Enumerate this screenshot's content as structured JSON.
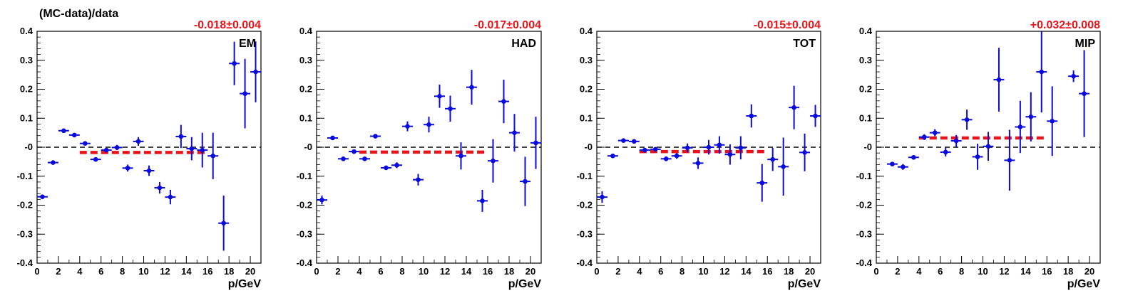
{
  "ylabel": "(MC-data)/data",
  "colors": {
    "points": "#0a0adc",
    "fit": "#e8141c",
    "zero_line": "#000000",
    "frame": "#000000"
  },
  "chart_data": [
    {
      "type": "scatter",
      "label": "EM",
      "fit_text": "-0.018±0.004",
      "fit": {
        "value": -0.018,
        "x_range": [
          4,
          16
        ]
      },
      "xlabel": "p/GeV",
      "xlim": [
        0,
        21
      ],
      "ylim": [
        -0.4,
        0.4
      ],
      "xticks": [
        0,
        2,
        4,
        6,
        8,
        10,
        12,
        14,
        16,
        18,
        20
      ],
      "yticks": [
        0.4,
        0.3,
        0.2,
        0.1,
        0,
        -0.1,
        -0.2,
        -0.3,
        -0.4
      ],
      "ytick_labels": [
        "0.4",
        "0.3",
        "0.2",
        "0.1",
        "-0",
        "-0.1",
        "-0.2",
        "-0.3",
        "-0.4"
      ],
      "points": [
        {
          "x": 0.5,
          "y": -0.171,
          "err": 0.006
        },
        {
          "x": 1.5,
          "y": -0.053,
          "err": 0.005
        },
        {
          "x": 2.5,
          "y": 0.057,
          "err": 0.005
        },
        {
          "x": 3.5,
          "y": 0.042,
          "err": 0.005
        },
        {
          "x": 4.5,
          "y": 0.013,
          "err": 0.006
        },
        {
          "x": 5.5,
          "y": -0.042,
          "err": 0.006
        },
        {
          "x": 6.5,
          "y": -0.01,
          "err": 0.007
        },
        {
          "x": 7.5,
          "y": -0.001,
          "err": 0.009
        },
        {
          "x": 8.5,
          "y": -0.072,
          "err": 0.012
        },
        {
          "x": 9.5,
          "y": 0.02,
          "err": 0.015
        },
        {
          "x": 10.5,
          "y": -0.081,
          "err": 0.018
        },
        {
          "x": 11.5,
          "y": -0.14,
          "err": 0.02
        },
        {
          "x": 12.5,
          "y": -0.172,
          "err": 0.025
        },
        {
          "x": 13.5,
          "y": 0.037,
          "err": 0.04
        },
        {
          "x": 14.5,
          "y": -0.005,
          "err": 0.04
        },
        {
          "x": 15.5,
          "y": -0.01,
          "err": 0.06
        },
        {
          "x": 16.5,
          "y": -0.03,
          "err": 0.08
        },
        {
          "x": 17.5,
          "y": -0.262,
          "err": 0.095
        },
        {
          "x": 18.5,
          "y": 0.289,
          "err": 0.075
        },
        {
          "x": 19.5,
          "y": 0.185,
          "err": 0.12
        },
        {
          "x": 20.5,
          "y": 0.26,
          "err": 0.105
        }
      ]
    },
    {
      "type": "scatter",
      "label": "HAD",
      "fit_text": "-0.017±0.004",
      "fit": {
        "value": -0.017,
        "x_range": [
          4,
          16
        ]
      },
      "xlabel": "p/GeV",
      "xlim": [
        0,
        21
      ],
      "ylim": [
        -0.4,
        0.4
      ],
      "xticks": [
        0,
        2,
        4,
        6,
        8,
        10,
        12,
        14,
        16,
        18,
        20
      ],
      "yticks": [
        0.4,
        0.3,
        0.2,
        0.1,
        0,
        -0.1,
        -0.2,
        -0.3,
        -0.4
      ],
      "ytick_labels": [
        "0.4",
        "0.3",
        "0.2",
        "0.1",
        "-0",
        "-0.1",
        "-0.2",
        "-0.3",
        "-0.4"
      ],
      "points": [
        {
          "x": 0.5,
          "y": -0.182,
          "err": 0.015
        },
        {
          "x": 1.5,
          "y": 0.032,
          "err": 0.005
        },
        {
          "x": 2.5,
          "y": -0.04,
          "err": 0.005
        },
        {
          "x": 3.5,
          "y": -0.015,
          "err": 0.005
        },
        {
          "x": 4.5,
          "y": -0.04,
          "err": 0.005
        },
        {
          "x": 5.5,
          "y": 0.038,
          "err": 0.006
        },
        {
          "x": 6.5,
          "y": -0.071,
          "err": 0.007
        },
        {
          "x": 7.5,
          "y": -0.062,
          "err": 0.01
        },
        {
          "x": 8.5,
          "y": 0.072,
          "err": 0.017
        },
        {
          "x": 9.5,
          "y": -0.112,
          "err": 0.02
        },
        {
          "x": 10.5,
          "y": 0.078,
          "err": 0.027
        },
        {
          "x": 11.5,
          "y": 0.176,
          "err": 0.04
        },
        {
          "x": 12.5,
          "y": 0.133,
          "err": 0.045
        },
        {
          "x": 13.5,
          "y": -0.03,
          "err": 0.047
        },
        {
          "x": 14.5,
          "y": 0.207,
          "err": 0.06
        },
        {
          "x": 15.5,
          "y": -0.185,
          "err": 0.038
        },
        {
          "x": 16.5,
          "y": -0.047,
          "err": 0.075
        },
        {
          "x": 17.5,
          "y": 0.158,
          "err": 0.075
        },
        {
          "x": 18.5,
          "y": 0.05,
          "err": 0.065
        },
        {
          "x": 19.5,
          "y": -0.118,
          "err": 0.085
        },
        {
          "x": 20.5,
          "y": 0.015,
          "err": 0.09
        }
      ]
    },
    {
      "type": "scatter",
      "label": "TOT",
      "fit_text": "-0.015±0.004",
      "fit": {
        "value": -0.015,
        "x_range": [
          4,
          16
        ]
      },
      "xlabel": "p/GeV",
      "xlim": [
        0,
        21
      ],
      "ylim": [
        -0.4,
        0.4
      ],
      "xticks": [
        0,
        2,
        4,
        6,
        8,
        10,
        12,
        14,
        16,
        18,
        20
      ],
      "yticks": [
        0.4,
        0.3,
        0.2,
        0.1,
        0,
        -0.1,
        -0.2,
        -0.3,
        -0.4
      ],
      "ytick_labels": [
        "0.4",
        "0.3",
        "0.2",
        "0.1",
        "-0",
        "-0.1",
        "-0.2",
        "-0.3",
        "-0.4"
      ],
      "points": [
        {
          "x": 0.5,
          "y": -0.172,
          "err": 0.02
        },
        {
          "x": 1.5,
          "y": -0.03,
          "err": 0.007
        },
        {
          "x": 2.5,
          "y": 0.023,
          "err": 0.006
        },
        {
          "x": 3.5,
          "y": 0.02,
          "err": 0.006
        },
        {
          "x": 4.5,
          "y": -0.01,
          "err": 0.006
        },
        {
          "x": 5.5,
          "y": -0.007,
          "err": 0.007
        },
        {
          "x": 6.5,
          "y": -0.04,
          "err": 0.008
        },
        {
          "x": 7.5,
          "y": -0.03,
          "err": 0.01
        },
        {
          "x": 8.5,
          "y": -0.002,
          "err": 0.015
        },
        {
          "x": 9.5,
          "y": -0.055,
          "err": 0.02
        },
        {
          "x": 10.5,
          "y": 0.0,
          "err": 0.025
        },
        {
          "x": 11.5,
          "y": 0.008,
          "err": 0.03
        },
        {
          "x": 12.5,
          "y": -0.025,
          "err": 0.035
        },
        {
          "x": 13.5,
          "y": -0.002,
          "err": 0.04
        },
        {
          "x": 14.5,
          "y": 0.108,
          "err": 0.04
        },
        {
          "x": 15.5,
          "y": -0.123,
          "err": 0.065
        },
        {
          "x": 16.5,
          "y": -0.042,
          "err": 0.04
        },
        {
          "x": 17.5,
          "y": -0.067,
          "err": 0.1
        },
        {
          "x": 18.5,
          "y": 0.137,
          "err": 0.075
        },
        {
          "x": 19.5,
          "y": -0.018,
          "err": 0.065
        },
        {
          "x": 20.5,
          "y": 0.108,
          "err": 0.038
        }
      ]
    },
    {
      "type": "scatter",
      "label": "MIP",
      "fit_text": "+0.032±0.008",
      "fit": {
        "value": 0.032,
        "x_range": [
          4,
          16
        ]
      },
      "xlabel": "p/GeV",
      "xlim": [
        0,
        21
      ],
      "ylim": [
        -0.4,
        0.4
      ],
      "xticks": [
        0,
        2,
        4,
        6,
        8,
        10,
        12,
        14,
        16,
        18,
        20
      ],
      "yticks": [
        0.4,
        0.3,
        0.2,
        0.1,
        0,
        -0.1,
        -0.2,
        -0.3,
        -0.4
      ],
      "ytick_labels": [
        "0.4",
        "0.3",
        "0.2",
        "0.1",
        "-0",
        "-0.1",
        "-0.2",
        "-0.3",
        "-0.4"
      ],
      "points": [
        {
          "x": 1.5,
          "y": -0.058,
          "err": 0.006
        },
        {
          "x": 2.5,
          "y": -0.068,
          "err": 0.01
        },
        {
          "x": 3.5,
          "y": -0.035,
          "err": 0.007
        },
        {
          "x": 4.5,
          "y": 0.035,
          "err": 0.01
        },
        {
          "x": 5.5,
          "y": 0.05,
          "err": 0.012
        },
        {
          "x": 6.5,
          "y": -0.017,
          "err": 0.015
        },
        {
          "x": 7.5,
          "y": 0.022,
          "err": 0.02
        },
        {
          "x": 8.5,
          "y": 0.095,
          "err": 0.035
        },
        {
          "x": 9.5,
          "y": -0.033,
          "err": 0.045
        },
        {
          "x": 10.5,
          "y": 0.003,
          "err": 0.05
        },
        {
          "x": 11.5,
          "y": 0.233,
          "err": 0.11
        },
        {
          "x": 12.5,
          "y": -0.045,
          "err": 0.105
        },
        {
          "x": 13.5,
          "y": 0.07,
          "err": 0.09
        },
        {
          "x": 14.5,
          "y": 0.105,
          "err": 0.085
        },
        {
          "x": 15.5,
          "y": 0.26,
          "err": 0.14
        },
        {
          "x": 16.5,
          "y": 0.09,
          "err": 0.12
        },
        {
          "x": 18.5,
          "y": 0.245,
          "err": 0.02
        },
        {
          "x": 19.5,
          "y": 0.185,
          "err": 0.15
        }
      ]
    }
  ]
}
